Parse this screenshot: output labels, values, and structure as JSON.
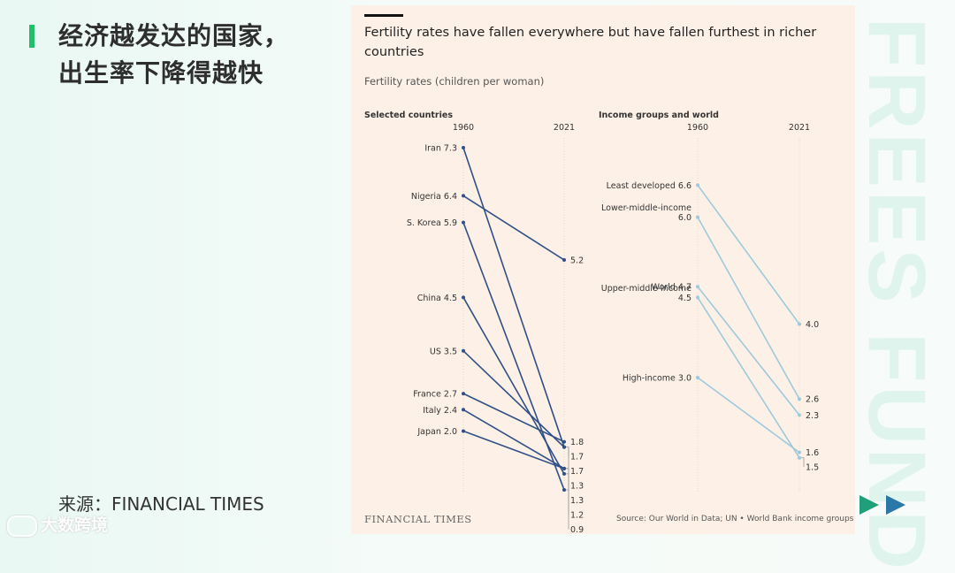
{
  "slide": {
    "headline_line1": "经济越发达的国家，",
    "headline_line2": "出生率下降得越快",
    "source": "来源：FINANCIAL TIMES",
    "watermark": "大数跨境",
    "side_text": "FREES FUND",
    "colors": {
      "accent": "#1fbf6b",
      "play_green": "#1fa07a",
      "play_blue": "#2a78a8"
    }
  },
  "chart": {
    "title": "Fertility rates have fallen everywhere but have fallen furthest in richer countries",
    "subtitle": "Fertility rates (children per woman)",
    "brand": "FINANCIAL TIMES",
    "footnote": "Source: Our World in Data; UN • World Bank income groups"
  },
  "chart_data": [
    {
      "type": "line",
      "title": "Selected countries",
      "x": [
        "1960",
        "2021"
      ],
      "series_color": "#2f4f86",
      "series": [
        {
          "name": "Iran",
          "values": [
            7.3,
            1.7
          ],
          "label_1960": "Iran 7.3"
        },
        {
          "name": "Nigeria",
          "values": [
            6.4,
            5.2
          ],
          "label_1960": "Nigeria 6.4"
        },
        {
          "name": "S. Korea",
          "values": [
            5.9,
            0.9
          ],
          "label_1960": "S. Korea 5.9"
        },
        {
          "name": "China",
          "values": [
            4.5,
            1.2
          ],
          "label_1960": "China 4.5"
        },
        {
          "name": "US",
          "values": [
            3.5,
            1.7
          ],
          "label_1960": "US 3.5"
        },
        {
          "name": "France",
          "values": [
            2.7,
            1.8
          ],
          "label_1960": "France 2.7"
        },
        {
          "name": "Italy",
          "values": [
            2.4,
            1.3
          ],
          "label_1960": "Italy 2.4"
        },
        {
          "name": "Japan",
          "values": [
            2.0,
            1.3
          ],
          "label_1960": "Japan 2.0"
        }
      ],
      "labels_2021": [
        "5.2",
        "1.8",
        "1.7",
        "1.7",
        "1.3",
        "1.3",
        "1.2",
        "0.9"
      ],
      "ylim": [
        0.9,
        7.3
      ]
    },
    {
      "type": "line",
      "title": "Income groups and world",
      "x": [
        "1960",
        "2021"
      ],
      "series_color": "#9ec9dc",
      "series": [
        {
          "name": "Least developed",
          "values": [
            6.6,
            4.0
          ],
          "label_1960": "Least developed 6.6"
        },
        {
          "name": "Lower-middle-income",
          "values": [
            6.0,
            2.6
          ],
          "label_1960": "Lower-middle-income\n6.0"
        },
        {
          "name": "World",
          "values": [
            4.7,
            2.3
          ],
          "label_1960": "World 4.7"
        },
        {
          "name": "Upper-middle-income",
          "values": [
            4.5,
            1.5
          ],
          "label_1960": "Upper-middle-income\n4.5"
        },
        {
          "name": "High-income",
          "values": [
            3.0,
            1.6
          ],
          "label_1960": "High-income 3.0"
        }
      ],
      "labels_2021": [
        "4.0",
        "2.6",
        "2.3",
        "1.6",
        "1.5"
      ],
      "ylim": [
        0.9,
        7.3
      ]
    }
  ]
}
